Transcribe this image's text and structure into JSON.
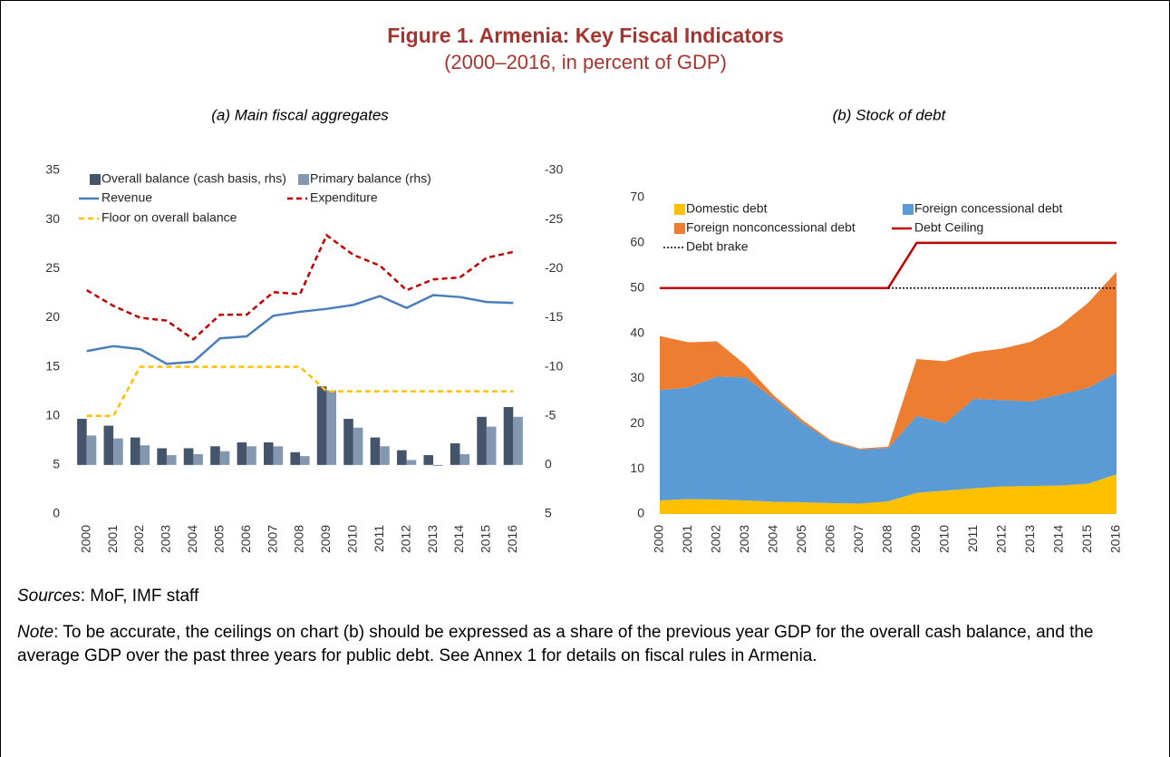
{
  "figure": {
    "title": "Figure 1. Armenia: Key Fiscal Indicators",
    "subtitle": "(2000–2016, in percent of GDP)",
    "sources": {
      "label": "Sources",
      "text": ": MoF, IMF staff"
    },
    "note": {
      "label": "Note",
      "text": ": To be accurate, the ceilings on chart (b) should be expressed as a share of the previous year GDP for the overall cash balance, and the average GDP over the past three years for public debt. See Annex 1 for details on fiscal rules in Armenia."
    }
  },
  "chart_data": [
    {
      "type": "combo",
      "title": "(a) Main fiscal aggregates",
      "categories": [
        "2000",
        "2001",
        "2002",
        "2003",
        "2004",
        "2005",
        "2006",
        "2007",
        "2008",
        "2009",
        "2010",
        "2011",
        "2012",
        "2013",
        "2014",
        "2015",
        "2016"
      ],
      "ylim": [
        0,
        35
      ],
      "yticks": [
        0,
        5,
        10,
        15,
        20,
        25,
        30,
        35
      ],
      "y2lim": [
        5,
        -30
      ],
      "y2ticks": [
        5,
        0,
        -5,
        -10,
        -15,
        -20,
        -25,
        -30
      ],
      "series": [
        {
          "name": "Overall balance (cash basis, rhs)",
          "type": "bar",
          "axis": "y2",
          "color": "#44546a",
          "values": [
            -4.7,
            -4.0,
            -2.8,
            -1.7,
            -1.7,
            -1.9,
            -2.3,
            -2.3,
            -1.3,
            -8.0,
            -4.7,
            -2.8,
            -1.5,
            -1.0,
            -2.2,
            -4.9,
            -5.9
          ]
        },
        {
          "name": "Primary balance (rhs)",
          "type": "bar",
          "axis": "y2",
          "color": "#8497b0",
          "values": [
            -3.0,
            -2.7,
            -2.0,
            -1.0,
            -1.1,
            -1.4,
            -1.9,
            -1.9,
            -0.9,
            -7.6,
            -3.8,
            -1.9,
            -0.5,
            0.1,
            -1.1,
            -3.9,
            -4.9
          ]
        },
        {
          "name": "Revenue",
          "type": "line",
          "color": "#4a7ebb",
          "dash": "solid",
          "values": [
            16.6,
            17.1,
            16.8,
            15.3,
            15.5,
            17.9,
            18.1,
            20.2,
            20.6,
            20.9,
            21.3,
            22.2,
            21.0,
            22.3,
            22.1,
            21.6,
            21.5
          ]
        },
        {
          "name": "Expenditure",
          "type": "line",
          "color": "#c00000",
          "dash": "dashed",
          "values": [
            22.8,
            21.2,
            20.0,
            19.7,
            17.8,
            20.3,
            20.3,
            22.6,
            22.4,
            28.4,
            26.4,
            25.3,
            22.8,
            23.9,
            24.1,
            26.1,
            26.7
          ]
        },
        {
          "name": "Floor on overall balance",
          "type": "line",
          "axis": "y2",
          "color": "#ffc000",
          "dash": "dashed",
          "values": [
            -5,
            -5,
            -10,
            -10,
            -10,
            -10,
            -10,
            -10,
            -10,
            -7.5,
            -7.5,
            -7.5,
            -7.5,
            -7.5,
            -7.5,
            -7.5,
            -7.5
          ]
        }
      ]
    },
    {
      "type": "stacked-area",
      "title": "(b) Stock of debt",
      "categories": [
        "2000",
        "2001",
        "2002",
        "2003",
        "2004",
        "2005",
        "2006",
        "2007",
        "2008",
        "2009",
        "2010",
        "2011",
        "2012",
        "2013",
        "2014",
        "2015",
        "2016"
      ],
      "ylim": [
        0,
        70
      ],
      "yticks": [
        0,
        10,
        20,
        30,
        40,
        50,
        60,
        70
      ],
      "series": [
        {
          "name": "Domestic debt",
          "type": "area",
          "color": "#ffc000",
          "values": [
            3.0,
            3.3,
            3.2,
            3.0,
            2.7,
            2.6,
            2.4,
            2.3,
            2.8,
            4.7,
            5.2,
            5.7,
            6.1,
            6.2,
            6.3,
            6.7,
            8.8
          ]
        },
        {
          "name": "Foreign concessional debt",
          "type": "area",
          "color": "#5b9bd5",
          "values": [
            24.4,
            24.7,
            27.2,
            27.2,
            22.8,
            17.6,
            13.6,
            12.0,
            11.8,
            17.0,
            14.9,
            19.8,
            19.1,
            18.7,
            20.1,
            21.2,
            22.5
          ]
        },
        {
          "name": "Foreign nonconcessional debt",
          "type": "area",
          "color": "#ed7d31",
          "values": [
            12.0,
            10.0,
            7.8,
            2.8,
            0.7,
            0.6,
            0.3,
            0.2,
            0.3,
            12.6,
            13.7,
            10.3,
            11.4,
            13.2,
            15.2,
            18.8,
            22.3
          ]
        },
        {
          "name": "Debt Ceiling",
          "type": "line",
          "color": "#c00000",
          "dash": "solid",
          "values": [
            50,
            50,
            50,
            50,
            50,
            50,
            50,
            50,
            50,
            60,
            60,
            60,
            60,
            60,
            60,
            60,
            60
          ]
        },
        {
          "name": "Debt brake",
          "type": "line",
          "color": "#000000",
          "dash": "dotted",
          "values": [
            null,
            null,
            null,
            null,
            null,
            null,
            null,
            null,
            50,
            50,
            50,
            50,
            50,
            50,
            50,
            50,
            50
          ]
        }
      ]
    }
  ]
}
